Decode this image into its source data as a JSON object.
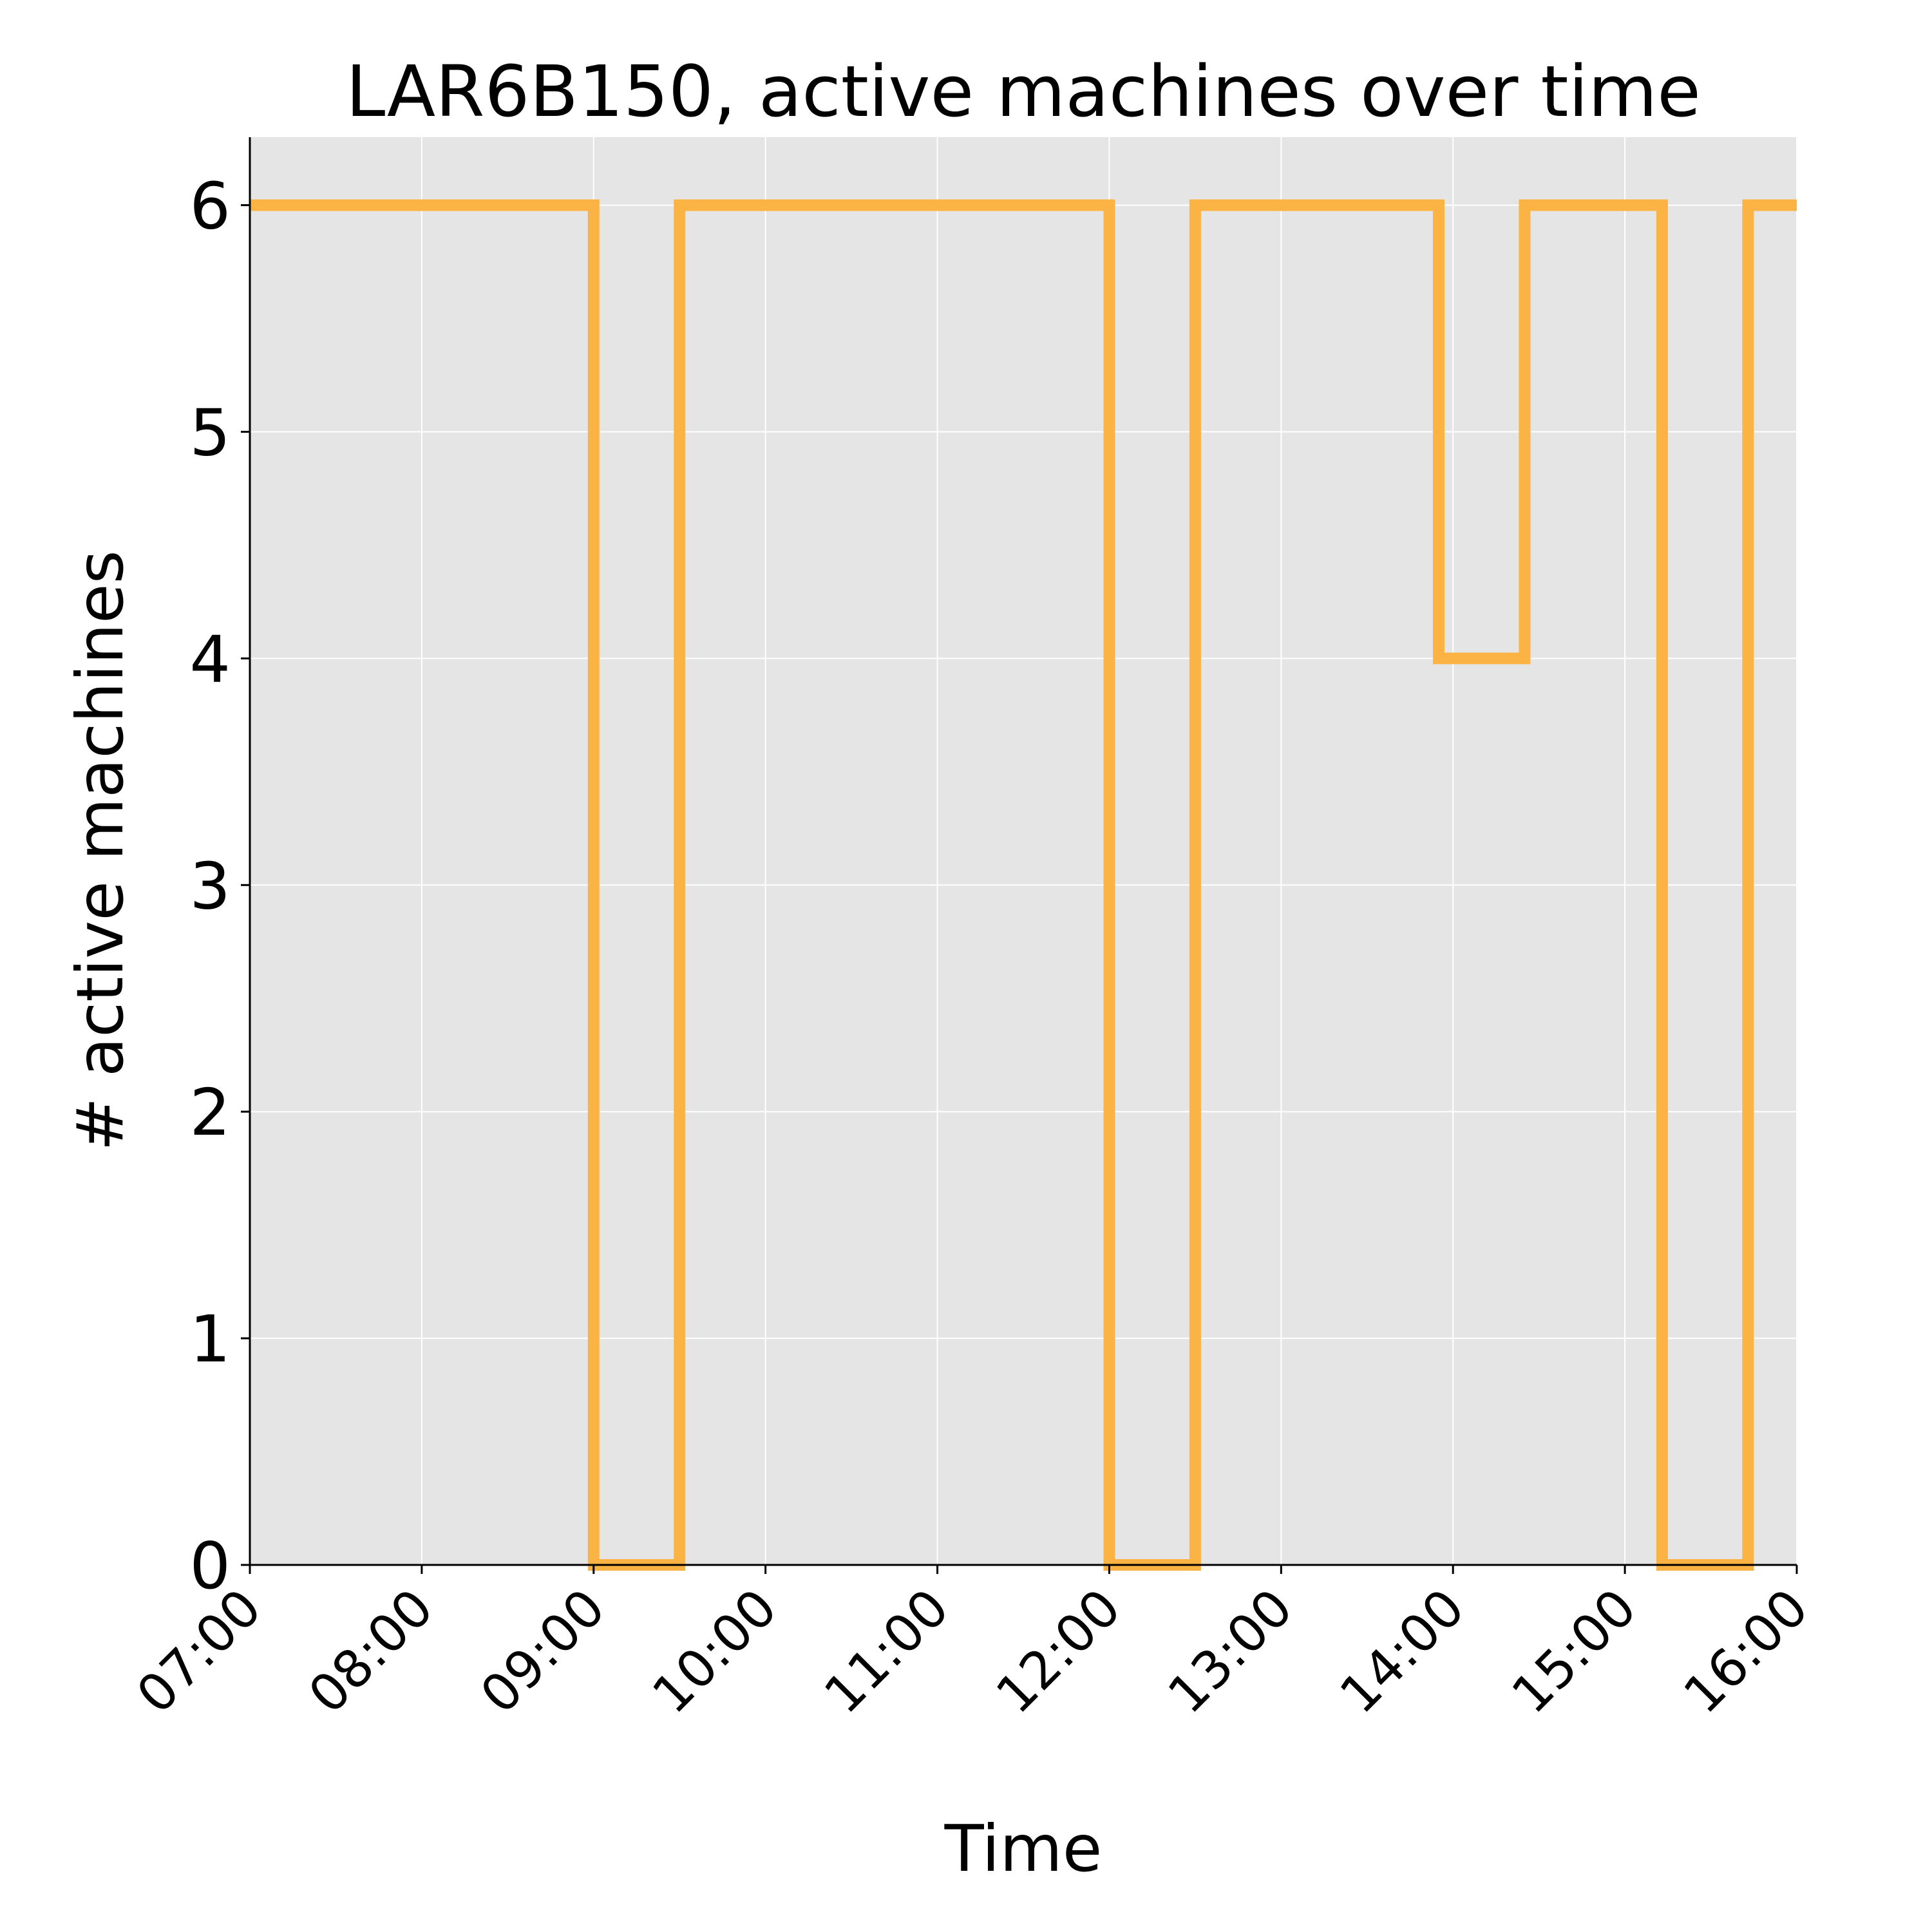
{
  "chart_data": {
    "type": "line",
    "step": true,
    "title": "LAR6B150, active machines over time",
    "xlabel": "Time",
    "ylabel": "# active machines",
    "xlim": [
      "07:00",
      "16:00"
    ],
    "ylim": [
      0,
      6.3
    ],
    "x_ticks": [
      "07:00",
      "08:00",
      "09:00",
      "10:00",
      "11:00",
      "12:00",
      "13:00",
      "14:00",
      "15:00",
      "16:00"
    ],
    "y_ticks": [
      0,
      1,
      2,
      3,
      4,
      5,
      6
    ],
    "grid": true,
    "legend": "none",
    "series": [
      {
        "color": "#FBB444",
        "points": [
          {
            "x": "07:00",
            "y": 6
          },
          {
            "x": "09:00",
            "y": 0
          },
          {
            "x": "09:30",
            "y": 6
          },
          {
            "x": "12:00",
            "y": 0
          },
          {
            "x": "12:30",
            "y": 6
          },
          {
            "x": "13:55",
            "y": 4
          },
          {
            "x": "14:25",
            "y": 6
          },
          {
            "x": "15:13",
            "y": 0
          },
          {
            "x": "15:43",
            "y": 6
          },
          {
            "x": "16:00",
            "y": 6
          }
        ]
      }
    ]
  }
}
